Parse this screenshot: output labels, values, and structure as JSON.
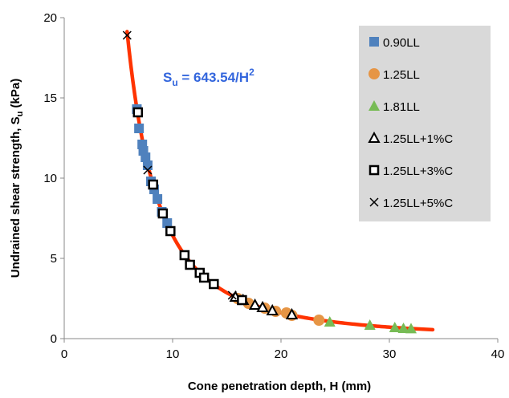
{
  "chart_data": {
    "type": "scatter",
    "xlabel": "Cone penetration depth, H (mm)",
    "ylabel_main": "Undrained shear strength, S",
    "ylabel_sub": "u",
    "ylabel_unit": " (kPa)",
    "xlim": [
      0,
      40
    ],
    "ylim": [
      0,
      20
    ],
    "xticks": [
      0,
      10,
      20,
      30,
      40
    ],
    "yticks": [
      0,
      5,
      10,
      15,
      20
    ],
    "grid": false,
    "legend_position": "top-right",
    "equation": {
      "s": "S",
      "sub": "u",
      "rest": " = 643.54/H",
      "sup": "2",
      "color": "#3366dd"
    },
    "fit": {
      "coefficient": 643.54,
      "exponent": -2,
      "x_range": [
        5.8,
        34
      ],
      "color": "#ff3300"
    },
    "series": [
      {
        "name": "0.90LL",
        "marker": "filled-square",
        "color": "#4f81bd",
        "x": [
          6.7,
          6.9,
          7.2,
          7.3,
          7.5,
          7.7,
          8.0,
          8.3,
          8.6,
          9.0,
          9.5
        ],
        "y": [
          14.3,
          13.1,
          12.1,
          11.7,
          11.3,
          10.8,
          9.8,
          9.3,
          8.7,
          7.9,
          7.2
        ]
      },
      {
        "name": "1.25LL",
        "marker": "filled-circle",
        "color": "#e69545",
        "x": [
          16.0,
          17.0,
          18.5,
          19.5,
          20.5,
          21.0,
          23.5
        ],
        "y": [
          2.5,
          2.2,
          1.9,
          1.7,
          1.6,
          1.45,
          1.15
        ]
      },
      {
        "name": "1.81LL",
        "marker": "filled-triangle",
        "color": "#77bb55",
        "x": [
          24.5,
          28.2,
          30.5,
          31.3,
          32.0
        ],
        "y": [
          1.05,
          0.85,
          0.7,
          0.65,
          0.63
        ]
      },
      {
        "name": "1.25LL+1%C",
        "marker": "open-triangle",
        "color": "#000000",
        "x": [
          15.8,
          16.5,
          17.6,
          18.3,
          19.2,
          21.0
        ],
        "y": [
          2.6,
          2.4,
          2.1,
          1.95,
          1.75,
          1.5
        ]
      },
      {
        "name": "1.25LL+3%C",
        "marker": "open-square",
        "color": "#000000",
        "x": [
          6.8,
          8.2,
          9.1,
          9.8,
          11.1,
          11.6,
          12.5,
          12.9,
          13.8,
          16.4
        ],
        "y": [
          14.1,
          9.6,
          7.8,
          6.7,
          5.2,
          4.6,
          4.1,
          3.8,
          3.4,
          2.4
        ]
      },
      {
        "name": "1.25LL+5%C",
        "marker": "x",
        "color": "#000000",
        "x": [
          5.8,
          7.7,
          15.5
        ],
        "y": [
          18.9,
          10.5,
          2.7
        ]
      }
    ]
  }
}
